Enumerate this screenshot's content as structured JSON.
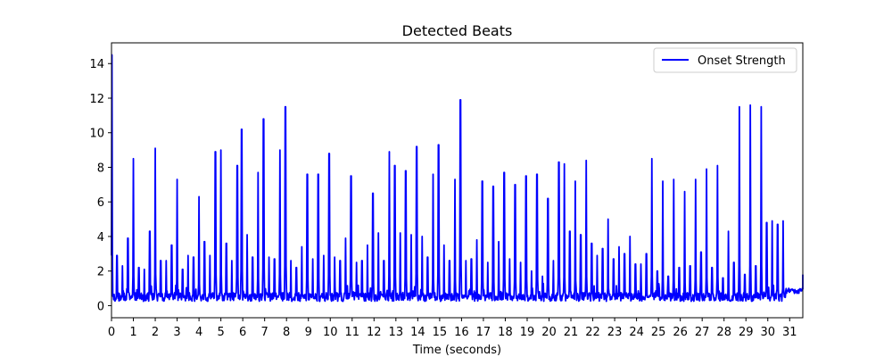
{
  "chart_data": {
    "type": "line",
    "title": "Detected Beats",
    "xlabel": "Time (seconds)",
    "ylabel": "",
    "xlim": [
      0,
      31.6
    ],
    "ylim": [
      -0.7,
      15.2
    ],
    "xticks": [
      0,
      1,
      2,
      3,
      4,
      5,
      6,
      7,
      8,
      9,
      10,
      11,
      12,
      13,
      14,
      15,
      16,
      17,
      18,
      19,
      20,
      21,
      22,
      23,
      24,
      25,
      26,
      27,
      28,
      29,
      30,
      31
    ],
    "yticks": [
      0,
      2,
      4,
      6,
      8,
      10,
      12,
      14
    ],
    "grid": false,
    "legend_position": "top-right",
    "color": "#0000ff",
    "series": [
      {
        "name": "Onset Strength",
        "baseline": 0.5,
        "peaks": [
          [
            0.02,
            14.5
          ],
          [
            0.25,
            2.9
          ],
          [
            0.5,
            2.3
          ],
          [
            0.75,
            3.9
          ],
          [
            1.0,
            8.5
          ],
          [
            1.25,
            2.2
          ],
          [
            1.5,
            2.1
          ],
          [
            1.75,
            4.3
          ],
          [
            2.0,
            9.1
          ],
          [
            2.25,
            2.6
          ],
          [
            2.5,
            2.6
          ],
          [
            2.75,
            3.5
          ],
          [
            3.0,
            7.3
          ],
          [
            3.25,
            2.1
          ],
          [
            3.5,
            2.9
          ],
          [
            3.75,
            2.8
          ],
          [
            4.0,
            6.3
          ],
          [
            4.25,
            3.7
          ],
          [
            4.5,
            2.9
          ],
          [
            4.75,
            8.9
          ],
          [
            5.0,
            9.0
          ],
          [
            5.25,
            3.6
          ],
          [
            5.5,
            2.6
          ],
          [
            5.75,
            8.1
          ],
          [
            5.95,
            10.2
          ],
          [
            6.2,
            4.1
          ],
          [
            6.45,
            2.8
          ],
          [
            6.7,
            7.7
          ],
          [
            6.95,
            10.8
          ],
          [
            7.2,
            2.8
          ],
          [
            7.45,
            2.7
          ],
          [
            7.7,
            9.0
          ],
          [
            7.95,
            11.5
          ],
          [
            8.2,
            2.6
          ],
          [
            8.45,
            2.2
          ],
          [
            8.7,
            3.4
          ],
          [
            8.95,
            7.6
          ],
          [
            9.2,
            2.7
          ],
          [
            9.45,
            7.6
          ],
          [
            9.7,
            2.9
          ],
          [
            9.95,
            8.8
          ],
          [
            10.2,
            2.8
          ],
          [
            10.45,
            2.6
          ],
          [
            10.7,
            3.9
          ],
          [
            10.95,
            7.5
          ],
          [
            11.2,
            2.5
          ],
          [
            11.45,
            2.6
          ],
          [
            11.7,
            3.5
          ],
          [
            11.95,
            6.5
          ],
          [
            12.2,
            4.2
          ],
          [
            12.45,
            2.6
          ],
          [
            12.7,
            8.9
          ],
          [
            12.95,
            8.1
          ],
          [
            13.2,
            4.2
          ],
          [
            13.45,
            7.8
          ],
          [
            13.7,
            4.1
          ],
          [
            13.95,
            9.2
          ],
          [
            14.2,
            4.0
          ],
          [
            14.45,
            2.8
          ],
          [
            14.7,
            7.6
          ],
          [
            14.95,
            9.3
          ],
          [
            15.2,
            3.5
          ],
          [
            15.45,
            2.6
          ],
          [
            15.7,
            7.3
          ],
          [
            15.95,
            11.9
          ],
          [
            16.2,
            2.6
          ],
          [
            16.45,
            2.7
          ],
          [
            16.7,
            3.8
          ],
          [
            16.95,
            7.2
          ],
          [
            17.2,
            2.5
          ],
          [
            17.45,
            6.9
          ],
          [
            17.7,
            3.7
          ],
          [
            17.95,
            7.7
          ],
          [
            18.2,
            2.7
          ],
          [
            18.45,
            7.0
          ],
          [
            18.7,
            2.5
          ],
          [
            18.95,
            7.5
          ],
          [
            19.2,
            2.0
          ],
          [
            19.45,
            7.6
          ],
          [
            19.7,
            1.7
          ],
          [
            19.95,
            6.2
          ],
          [
            20.2,
            2.6
          ],
          [
            20.45,
            8.3
          ],
          [
            20.7,
            8.2
          ],
          [
            20.95,
            4.3
          ],
          [
            21.2,
            7.2
          ],
          [
            21.45,
            4.1
          ],
          [
            21.7,
            8.4
          ],
          [
            21.95,
            3.6
          ],
          [
            22.2,
            2.9
          ],
          [
            22.45,
            3.3
          ],
          [
            22.7,
            5.0
          ],
          [
            22.95,
            2.7
          ],
          [
            23.2,
            3.4
          ],
          [
            23.45,
            3.0
          ],
          [
            23.7,
            4.0
          ],
          [
            23.95,
            2.4
          ],
          [
            24.2,
            2.4
          ],
          [
            24.45,
            3.0
          ],
          [
            24.7,
            8.5
          ],
          [
            24.95,
            2.0
          ],
          [
            25.2,
            7.2
          ],
          [
            25.45,
            1.7
          ],
          [
            25.7,
            7.3
          ],
          [
            25.95,
            2.2
          ],
          [
            26.2,
            6.6
          ],
          [
            26.45,
            2.3
          ],
          [
            26.7,
            7.3
          ],
          [
            26.95,
            3.1
          ],
          [
            27.2,
            7.9
          ],
          [
            27.45,
            2.2
          ],
          [
            27.7,
            8.1
          ],
          [
            27.95,
            1.6
          ],
          [
            28.2,
            4.3
          ],
          [
            28.45,
            2.5
          ],
          [
            28.7,
            11.5
          ],
          [
            28.95,
            1.8
          ],
          [
            29.2,
            11.6
          ],
          [
            29.45,
            2.3
          ],
          [
            29.7,
            11.5
          ],
          [
            29.95,
            4.8
          ],
          [
            30.2,
            4.9
          ],
          [
            30.45,
            4.7
          ],
          [
            30.7,
            4.9
          ]
        ]
      }
    ]
  }
}
